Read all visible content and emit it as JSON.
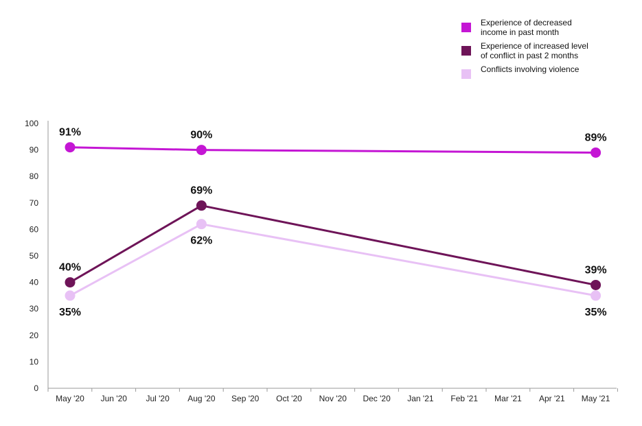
{
  "chart_data": {
    "type": "line",
    "categories": [
      "May '20",
      "Jun '20",
      "Jul '20",
      "Aug '20",
      "Sep '20",
      "Oct '20",
      "Nov '20",
      "Dec '20",
      "Jan '21",
      "Feb '21",
      "Mar '21",
      "Apr '21",
      "May '21"
    ],
    "ylim": [
      0,
      100
    ],
    "yticks": [
      0,
      10,
      20,
      30,
      40,
      50,
      60,
      70,
      80,
      90,
      100
    ],
    "title": "",
    "xlabel": "",
    "ylabel": "",
    "grid": false,
    "legend_position": "top-right",
    "series": [
      {
        "name": "Experience of decreased\nincome in past month",
        "color": "#c416d4",
        "points": [
          {
            "category": "May '20",
            "value": 91,
            "label": "91%",
            "label_pos": "above"
          },
          {
            "category": "Aug '20",
            "value": 90,
            "label": "90%",
            "label_pos": "above"
          },
          {
            "category": "May '21",
            "value": 89,
            "label": "89%",
            "label_pos": "above"
          }
        ]
      },
      {
        "name": "Experience of increased level\nof conflict in past 2 months",
        "color": "#6e1458",
        "points": [
          {
            "category": "May '20",
            "value": 40,
            "label": "40%",
            "label_pos": "above"
          },
          {
            "category": "Aug '20",
            "value": 69,
            "label": "69%",
            "label_pos": "above"
          },
          {
            "category": "May '21",
            "value": 39,
            "label": "39%",
            "label_pos": "above"
          }
        ]
      },
      {
        "name": "Conflicts involving violence",
        "color": "#e8c1f5",
        "points": [
          {
            "category": "May '20",
            "value": 35,
            "label": "35%",
            "label_pos": "below"
          },
          {
            "category": "Aug '20",
            "value": 62,
            "label": "62%",
            "label_pos": "below"
          },
          {
            "category": "May '21",
            "value": 35,
            "label": "35%",
            "label_pos": "below"
          }
        ]
      }
    ]
  }
}
